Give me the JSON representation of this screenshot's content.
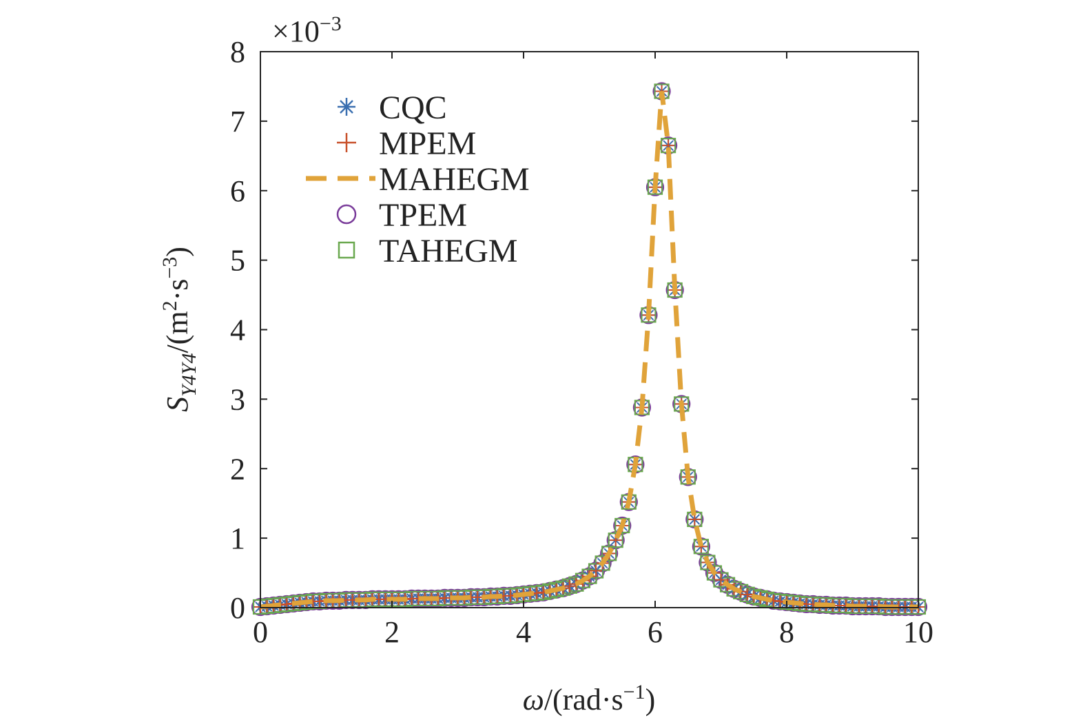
{
  "chart_data": {
    "type": "scatter",
    "xlabel": {
      "omega": "ω",
      "unit_open": "/(rad·s",
      "unit_exp": "−1",
      "unit_close": ")"
    },
    "ylabel": {
      "symbol": "S",
      "subscript": "Y4Y4",
      "unit_open": "/(m",
      "unit_exp1": "2",
      "unit_mid": "·s",
      "unit_exp2": "−3",
      "unit_close": ")"
    },
    "y_multiplier": {
      "base": "×10",
      "exp": "−3"
    },
    "xlim": [
      0,
      10
    ],
    "ylim": [
      0,
      8
    ],
    "x_ticks": [
      "0",
      "2",
      "4",
      "6",
      "8",
      "10"
    ],
    "y_ticks": [
      "0",
      "1",
      "2",
      "3",
      "4",
      "5",
      "6",
      "7",
      "8"
    ],
    "legend_position": "top-left",
    "x": [
      0.0,
      0.1,
      0.2,
      0.3,
      0.4,
      0.5,
      0.6,
      0.7,
      0.8,
      0.9,
      1.0,
      1.1,
      1.2,
      1.3,
      1.4,
      1.5,
      1.6,
      1.7,
      1.8,
      1.9,
      2.0,
      2.1,
      2.2,
      2.3,
      2.4,
      2.5,
      2.6,
      2.7,
      2.8,
      2.9,
      3.0,
      3.1,
      3.2,
      3.3,
      3.4,
      3.5,
      3.6,
      3.7,
      3.8,
      3.9,
      4.0,
      4.1,
      4.2,
      4.3,
      4.4,
      4.5,
      4.6,
      4.7,
      4.8,
      4.9,
      5.0,
      5.1,
      5.2,
      5.3,
      5.4,
      5.5,
      5.6,
      5.7,
      5.8,
      5.9,
      6.0,
      6.1,
      6.2,
      6.3,
      6.4,
      6.5,
      6.6,
      6.7,
      6.8,
      6.9,
      7.0,
      7.1,
      7.2,
      7.3,
      7.4,
      7.5,
      7.6,
      7.7,
      7.8,
      7.9,
      8.0,
      8.1,
      8.2,
      8.3,
      8.4,
      8.5,
      8.6,
      8.7,
      8.8,
      8.9,
      9.0,
      9.1,
      9.2,
      9.3,
      9.4,
      9.5,
      9.6,
      9.7,
      9.8,
      9.9,
      10.0
    ],
    "y": [
      0.01,
      0.02,
      0.03,
      0.04,
      0.05,
      0.06,
      0.07,
      0.08,
      0.09,
      0.09,
      0.1,
      0.1,
      0.1,
      0.11,
      0.11,
      0.11,
      0.11,
      0.12,
      0.12,
      0.12,
      0.12,
      0.12,
      0.12,
      0.13,
      0.13,
      0.13,
      0.13,
      0.13,
      0.14,
      0.14,
      0.14,
      0.14,
      0.15,
      0.15,
      0.15,
      0.16,
      0.16,
      0.17,
      0.17,
      0.18,
      0.19,
      0.2,
      0.21,
      0.22,
      0.24,
      0.26,
      0.28,
      0.31,
      0.34,
      0.39,
      0.45,
      0.53,
      0.64,
      0.78,
      0.97,
      1.18,
      1.52,
      2.06,
      2.88,
      4.21,
      6.05,
      7.43,
      6.65,
      4.57,
      2.93,
      1.88,
      1.27,
      0.88,
      0.65,
      0.5,
      0.4,
      0.33,
      0.27,
      0.23,
      0.19,
      0.16,
      0.14,
      0.12,
      0.1,
      0.09,
      0.08,
      0.07,
      0.06,
      0.05,
      0.05,
      0.04,
      0.04,
      0.03,
      0.03,
      0.03,
      0.02,
      0.02,
      0.02,
      0.02,
      0.02,
      0.01,
      0.01,
      0.01,
      0.01,
      0.01,
      0.01
    ],
    "series": [
      {
        "name": "CQC",
        "marker": "asterisk",
        "color": "#3a6fb0"
      },
      {
        "name": "MPEM",
        "marker": "plus",
        "color": "#c8502a"
      },
      {
        "name": "MAHEGM",
        "marker": "dashed-line",
        "color": "#e0a33a"
      },
      {
        "name": "TPEM",
        "marker": "circle",
        "color": "#7a3c9a"
      },
      {
        "name": "TAHEGM",
        "marker": "square",
        "color": "#6aa84f"
      }
    ]
  }
}
